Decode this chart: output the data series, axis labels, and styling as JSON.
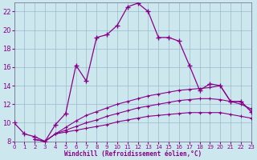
{
  "xlabel": "Windchill (Refroidissement éolien,°C)",
  "background_color": "#cce8ee",
  "grid_color": "#99bbcc",
  "line_color": "#880088",
  "xlim": [
    0,
    23
  ],
  "ylim": [
    8,
    23
  ],
  "yticks": [
    8,
    10,
    12,
    14,
    16,
    18,
    20,
    22
  ],
  "xticks": [
    0,
    1,
    2,
    3,
    4,
    5,
    6,
    7,
    8,
    9,
    10,
    11,
    12,
    13,
    14,
    15,
    16,
    17,
    18,
    19,
    20,
    21,
    22,
    23
  ],
  "line1_x": [
    0,
    1,
    2,
    3,
    4,
    5,
    6,
    7,
    8,
    9,
    10,
    11,
    12,
    13,
    14,
    15,
    16,
    17,
    18,
    19,
    20,
    21,
    22,
    23
  ],
  "line1_y": [
    10.0,
    8.8,
    8.5,
    8.0,
    9.8,
    11.0,
    16.2,
    14.5,
    19.2,
    19.5,
    20.5,
    22.5,
    22.9,
    22.0,
    19.2,
    19.2,
    18.8,
    16.2,
    13.5,
    14.2,
    14.0,
    12.3,
    12.3,
    11.2
  ],
  "line2_x": [
    2,
    3,
    4,
    5,
    6,
    7,
    8,
    9,
    10,
    11,
    12,
    13,
    14,
    15,
    16,
    17,
    18,
    19,
    20,
    21,
    22,
    23
  ],
  "line2_y": [
    8.2,
    8.0,
    8.8,
    9.5,
    10.2,
    10.8,
    11.2,
    11.6,
    12.0,
    12.3,
    12.6,
    12.9,
    13.1,
    13.3,
    13.5,
    13.6,
    13.7,
    13.8,
    14.0,
    12.3,
    12.3,
    11.2
  ],
  "line3_x": [
    2,
    3,
    4,
    5,
    6,
    7,
    8,
    9,
    10,
    11,
    12,
    13,
    14,
    15,
    16,
    17,
    18,
    19,
    20,
    21,
    22,
    23
  ],
  "line3_y": [
    8.2,
    8.0,
    8.8,
    9.2,
    9.6,
    10.0,
    10.3,
    10.7,
    11.0,
    11.3,
    11.6,
    11.8,
    12.0,
    12.2,
    12.4,
    12.5,
    12.6,
    12.6,
    12.5,
    12.3,
    12.0,
    11.5
  ],
  "line4_x": [
    2,
    3,
    4,
    5,
    6,
    7,
    8,
    9,
    10,
    11,
    12,
    13,
    14,
    15,
    16,
    17,
    18,
    19,
    20,
    21,
    22,
    23
  ],
  "line4_y": [
    8.2,
    8.0,
    8.8,
    9.0,
    9.2,
    9.4,
    9.6,
    9.8,
    10.1,
    10.3,
    10.5,
    10.7,
    10.8,
    10.9,
    11.0,
    11.1,
    11.1,
    11.1,
    11.1,
    10.9,
    10.7,
    10.5
  ]
}
